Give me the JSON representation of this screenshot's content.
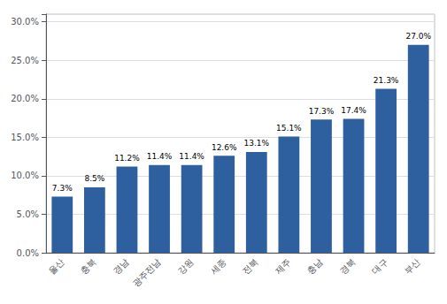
{
  "chart_data": {
    "type": "bar",
    "categories": [
      "울산",
      "충북",
      "경남",
      "광주전남",
      "강원",
      "세종",
      "전북",
      "제주",
      "충남",
      "경북",
      "대구",
      "부산"
    ],
    "values": [
      7.3,
      8.5,
      11.2,
      11.4,
      11.4,
      12.6,
      13.1,
      15.1,
      17.3,
      17.4,
      21.3,
      27.0
    ],
    "value_labels": [
      "7.3%",
      "8.5%",
      "11.2%",
      "11.4%",
      "11.4%",
      "12.6%",
      "13.1%",
      "15.1%",
      "17.3%",
      "17.4%",
      "21.3%",
      "27.0%"
    ],
    "data_labels": true,
    "color": "#2E5F9E",
    "ylim": [
      0,
      31
    ],
    "yticks": [
      {
        "value": 0,
        "label": "0.0%"
      },
      {
        "value": 5,
        "label": "5.0%"
      },
      {
        "value": 10,
        "label": "10.0%"
      },
      {
        "value": 15,
        "label": "15.0%"
      },
      {
        "value": 20,
        "label": "20.0%"
      },
      {
        "value": 25,
        "label": "25.0%"
      },
      {
        "value": 30,
        "label": "30.0%"
      }
    ],
    "grid": true
  }
}
